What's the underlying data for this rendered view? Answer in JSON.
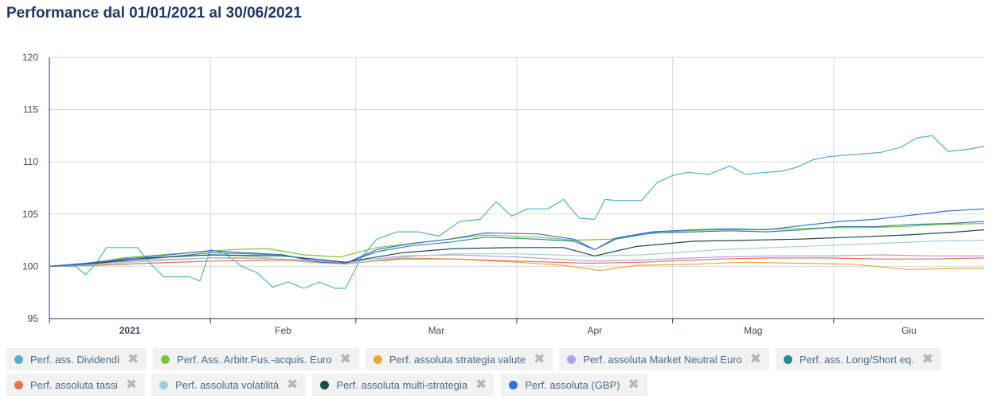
{
  "title": "Performance dal 01/01/2021 al 30/06/2021",
  "chart_data": {
    "type": "line",
    "ylim": [
      95,
      120
    ],
    "yticks": [
      95,
      100,
      105,
      110,
      115,
      120
    ],
    "xlim": [
      "2021-01-01",
      "2021-06-30"
    ],
    "xticks": [
      {
        "date": "2021-01-01",
        "label": "2021",
        "bold": true
      },
      {
        "date": "2021-02-01",
        "label": "Feb",
        "bold": false
      },
      {
        "date": "2021-03-01",
        "label": "Mar",
        "bold": false
      },
      {
        "date": "2021-04-01",
        "label": "Apr",
        "bold": false
      },
      {
        "date": "2021-05-01",
        "label": "Mag",
        "bold": false
      },
      {
        "date": "2021-06-01",
        "label": "Giu",
        "bold": false
      }
    ],
    "grid": true,
    "legend_position": "bottom",
    "series": [
      {
        "name": "Perf. ass. Dividendi",
        "color": "#4fb3c8",
        "points": [
          [
            "2021-01-01",
            100
          ],
          [
            "2021-01-06",
            100
          ],
          [
            "2021-01-08",
            99.2
          ],
          [
            "2021-01-10",
            100.3
          ],
          [
            "2021-01-12",
            101.8
          ],
          [
            "2021-01-18",
            101.8
          ],
          [
            "2021-01-20",
            100.5
          ],
          [
            "2021-01-23",
            99
          ],
          [
            "2021-01-28",
            99
          ],
          [
            "2021-01-30",
            98.6
          ],
          [
            "2021-02-01",
            101.6
          ],
          [
            "2021-02-04",
            101.2
          ],
          [
            "2021-02-07",
            100
          ],
          [
            "2021-02-10",
            99.4
          ],
          [
            "2021-02-13",
            98
          ],
          [
            "2021-02-16",
            98.5
          ],
          [
            "2021-02-19",
            97.9
          ],
          [
            "2021-02-22",
            98.5
          ],
          [
            "2021-02-25",
            97.9
          ],
          [
            "2021-02-27",
            97.9
          ],
          [
            "2021-03-02",
            100.8
          ],
          [
            "2021-03-05",
            102.6
          ],
          [
            "2021-03-09",
            103.3
          ],
          [
            "2021-03-13",
            103.3
          ],
          [
            "2021-03-17",
            102.9
          ],
          [
            "2021-03-21",
            104.3
          ],
          [
            "2021-03-25",
            104.5
          ],
          [
            "2021-03-28",
            106.2
          ],
          [
            "2021-03-31",
            104.8
          ],
          [
            "2021-04-03",
            105.5
          ],
          [
            "2021-04-07",
            105.5
          ],
          [
            "2021-04-10",
            106.4
          ],
          [
            "2021-04-13",
            104.6
          ],
          [
            "2021-04-16",
            104.5
          ],
          [
            "2021-04-18",
            106.4
          ],
          [
            "2021-04-20",
            106.3
          ],
          [
            "2021-04-25",
            106.3
          ],
          [
            "2021-04-28",
            108
          ],
          [
            "2021-05-01",
            108.7
          ],
          [
            "2021-05-04",
            109
          ],
          [
            "2021-05-08",
            108.8
          ],
          [
            "2021-05-12",
            109.6
          ],
          [
            "2021-05-15",
            108.8
          ],
          [
            "2021-05-19",
            109
          ],
          [
            "2021-05-22",
            109.1
          ],
          [
            "2021-05-25",
            109.5
          ],
          [
            "2021-05-28",
            110.2
          ],
          [
            "2021-05-31",
            110.5
          ],
          [
            "2021-06-05",
            110.7
          ],
          [
            "2021-06-10",
            110.9
          ],
          [
            "2021-06-14",
            111.4
          ],
          [
            "2021-06-17",
            112.3
          ],
          [
            "2021-06-20",
            112.5
          ],
          [
            "2021-06-23",
            111
          ],
          [
            "2021-06-27",
            111.2
          ],
          [
            "2021-06-30",
            111.5
          ]
        ]
      },
      {
        "name": "Perf. Ass. Arbitr.Fus.-acquis. Euro",
        "color": "#7bc63a",
        "points": [
          [
            "2021-01-01",
            100
          ],
          [
            "2021-01-08",
            100.2
          ],
          [
            "2021-01-15",
            100.8
          ],
          [
            "2021-01-25",
            101.2
          ],
          [
            "2021-02-05",
            101.6
          ],
          [
            "2021-02-12",
            101.7
          ],
          [
            "2021-02-19",
            101.1
          ],
          [
            "2021-02-26",
            100.9
          ],
          [
            "2021-03-05",
            101.8
          ],
          [
            "2021-03-12",
            102.2
          ],
          [
            "2021-03-19",
            102.6
          ],
          [
            "2021-03-26",
            103
          ],
          [
            "2021-04-05",
            102.8
          ],
          [
            "2021-04-12",
            102.5
          ],
          [
            "2021-04-19",
            102.6
          ],
          [
            "2021-04-26",
            103.1
          ],
          [
            "2021-05-03",
            103.4
          ],
          [
            "2021-05-10",
            103.5
          ],
          [
            "2021-05-17",
            103.5
          ],
          [
            "2021-05-24",
            103.6
          ],
          [
            "2021-05-31",
            103.7
          ],
          [
            "2021-06-07",
            103.7
          ],
          [
            "2021-06-14",
            103.8
          ],
          [
            "2021-06-21",
            104
          ],
          [
            "2021-06-30",
            104.1
          ]
        ]
      },
      {
        "name": "Perf. assoluta strategia valute",
        "color": "#e8a93a",
        "points": [
          [
            "2021-01-01",
            100
          ],
          [
            "2021-01-10",
            100.2
          ],
          [
            "2021-01-20",
            100.5
          ],
          [
            "2021-02-01",
            100.8
          ],
          [
            "2021-02-10",
            100.9
          ],
          [
            "2021-02-20",
            100.4
          ],
          [
            "2021-02-27",
            100.2
          ],
          [
            "2021-03-10",
            100.8
          ],
          [
            "2021-03-20",
            100.7
          ],
          [
            "2021-04-01",
            100.4
          ],
          [
            "2021-04-10",
            100.1
          ],
          [
            "2021-04-17",
            99.6
          ],
          [
            "2021-04-24",
            100.1
          ],
          [
            "2021-05-05",
            100.2
          ],
          [
            "2021-05-15",
            100.4
          ],
          [
            "2021-05-25",
            100.3
          ],
          [
            "2021-06-05",
            100.2
          ],
          [
            "2021-06-15",
            99.7
          ],
          [
            "2021-06-25",
            99.8
          ],
          [
            "2021-06-30",
            99.8
          ]
        ]
      },
      {
        "name": "Perf. assoluta Market Neutral Euro",
        "color": "#b39ef0",
        "points": [
          [
            "2021-01-01",
            100
          ],
          [
            "2021-01-10",
            100.3
          ],
          [
            "2021-01-20",
            100.6
          ],
          [
            "2021-02-01",
            100.8
          ],
          [
            "2021-02-15",
            100.7
          ],
          [
            "2021-02-27",
            100.4
          ],
          [
            "2021-03-10",
            101
          ],
          [
            "2021-03-20",
            101.1
          ],
          [
            "2021-04-01",
            100.9
          ],
          [
            "2021-04-15",
            100.5
          ],
          [
            "2021-04-25",
            100.6
          ],
          [
            "2021-05-10",
            100.9
          ],
          [
            "2021-05-20",
            101
          ],
          [
            "2021-05-31",
            101
          ],
          [
            "2021-06-10",
            101.1
          ],
          [
            "2021-06-20",
            101
          ],
          [
            "2021-06-30",
            101
          ]
        ]
      },
      {
        "name": "Perf. ass. Long/Short eq.",
        "color": "#2a8c96",
        "points": [
          [
            "2021-01-01",
            100
          ],
          [
            "2021-01-08",
            100.2
          ],
          [
            "2021-01-15",
            100.6
          ],
          [
            "2021-01-22",
            100.8
          ],
          [
            "2021-02-01",
            101.3
          ],
          [
            "2021-02-08",
            101.2
          ],
          [
            "2021-02-15",
            101.1
          ],
          [
            "2021-02-22",
            100.4
          ],
          [
            "2021-02-27",
            100.3
          ],
          [
            "2021-03-05",
            101.4
          ],
          [
            "2021-03-12",
            102
          ],
          [
            "2021-03-19",
            102.3
          ],
          [
            "2021-03-26",
            102.8
          ],
          [
            "2021-04-05",
            102.6
          ],
          [
            "2021-04-12",
            102.4
          ],
          [
            "2021-04-16",
            101.6
          ],
          [
            "2021-04-20",
            102.6
          ],
          [
            "2021-04-27",
            103.2
          ],
          [
            "2021-05-05",
            103.3
          ],
          [
            "2021-05-12",
            103.4
          ],
          [
            "2021-05-19",
            103.3
          ],
          [
            "2021-05-26",
            103.5
          ],
          [
            "2021-06-02",
            103.8
          ],
          [
            "2021-06-09",
            103.8
          ],
          [
            "2021-06-16",
            104
          ],
          [
            "2021-06-23",
            104.1
          ],
          [
            "2021-06-30",
            104.3
          ]
        ]
      },
      {
        "name": "Perf. assoluta tassi",
        "color": "#e8734a",
        "points": [
          [
            "2021-01-01",
            100
          ],
          [
            "2021-01-10",
            100.1
          ],
          [
            "2021-01-20",
            100.3
          ],
          [
            "2021-02-01",
            100.5
          ],
          [
            "2021-02-15",
            100.6
          ],
          [
            "2021-02-27",
            100.3
          ],
          [
            "2021-03-10",
            100.7
          ],
          [
            "2021-03-20",
            100.7
          ],
          [
            "2021-04-01",
            100.5
          ],
          [
            "2021-04-15",
            100.3
          ],
          [
            "2021-04-25",
            100.4
          ],
          [
            "2021-05-10",
            100.7
          ],
          [
            "2021-05-20",
            100.8
          ],
          [
            "2021-05-31",
            100.8
          ],
          [
            "2021-06-10",
            100.7
          ],
          [
            "2021-06-20",
            100.7
          ],
          [
            "2021-06-30",
            100.8
          ]
        ]
      },
      {
        "name": "Perf. assoluta volatilità",
        "color": "#9dd0dc",
        "points": [
          [
            "2021-01-01",
            100
          ],
          [
            "2021-01-10",
            100.2
          ],
          [
            "2021-01-20",
            100.5
          ],
          [
            "2021-02-01",
            100.8
          ],
          [
            "2021-02-15",
            100.7
          ],
          [
            "2021-02-27",
            100.2
          ],
          [
            "2021-03-10",
            100.9
          ],
          [
            "2021-03-20",
            101.2
          ],
          [
            "2021-04-01",
            101.2
          ],
          [
            "2021-04-15",
            101
          ],
          [
            "2021-04-25",
            101.1
          ],
          [
            "2021-05-10",
            101.6
          ],
          [
            "2021-05-20",
            101.8
          ],
          [
            "2021-05-31",
            102
          ],
          [
            "2021-06-10",
            102.2
          ],
          [
            "2021-06-20",
            102.4
          ],
          [
            "2021-06-30",
            102.5
          ]
        ]
      },
      {
        "name": "Perf. assoluta multi-strategia",
        "color": "#1e4a4a",
        "points": [
          [
            "2021-01-01",
            100
          ],
          [
            "2021-01-10",
            100.3
          ],
          [
            "2021-01-20",
            100.8
          ],
          [
            "2021-02-01",
            101.1
          ],
          [
            "2021-02-15",
            101
          ],
          [
            "2021-02-27",
            100.4
          ],
          [
            "2021-03-10",
            101.3
          ],
          [
            "2021-03-20",
            101.7
          ],
          [
            "2021-04-01",
            101.8
          ],
          [
            "2021-04-10",
            101.8
          ],
          [
            "2021-04-16",
            101
          ],
          [
            "2021-04-24",
            101.9
          ],
          [
            "2021-05-05",
            102.4
          ],
          [
            "2021-05-15",
            102.5
          ],
          [
            "2021-05-25",
            102.6
          ],
          [
            "2021-06-05",
            102.8
          ],
          [
            "2021-06-15",
            103
          ],
          [
            "2021-06-25",
            103.3
          ],
          [
            "2021-06-30",
            103.5
          ]
        ]
      },
      {
        "name": "Perf. assoluta (GBP)",
        "color": "#3a6fd8",
        "points": [
          [
            "2021-01-01",
            100
          ],
          [
            "2021-01-08",
            100.3
          ],
          [
            "2021-01-15",
            100.7
          ],
          [
            "2021-01-22",
            101
          ],
          [
            "2021-02-01",
            101.5
          ],
          [
            "2021-02-08",
            101.3
          ],
          [
            "2021-02-15",
            101.1
          ],
          [
            "2021-02-22",
            100.4
          ],
          [
            "2021-02-27",
            100.3
          ],
          [
            "2021-03-05",
            101.6
          ],
          [
            "2021-03-12",
            102.2
          ],
          [
            "2021-03-19",
            102.6
          ],
          [
            "2021-03-26",
            103.2
          ],
          [
            "2021-04-05",
            103.1
          ],
          [
            "2021-04-12",
            102.6
          ],
          [
            "2021-04-16",
            101.6
          ],
          [
            "2021-04-20",
            102.7
          ],
          [
            "2021-04-27",
            103.3
          ],
          [
            "2021-05-05",
            103.5
          ],
          [
            "2021-05-12",
            103.6
          ],
          [
            "2021-05-19",
            103.5
          ],
          [
            "2021-05-26",
            103.9
          ],
          [
            "2021-06-02",
            104.3
          ],
          [
            "2021-06-09",
            104.5
          ],
          [
            "2021-06-16",
            104.9
          ],
          [
            "2021-06-23",
            105.3
          ],
          [
            "2021-06-30",
            105.5
          ]
        ]
      }
    ]
  },
  "legend_rows": [
    [
      {
        "label": "Perf. ass. Dividendi",
        "color": "#4fb3c8"
      },
      {
        "label": "Perf. Ass. Arbitr.Fus.-acquis. Euro",
        "color": "#7bc63a"
      },
      {
        "label": "Perf. assoluta strategia valute",
        "color": "#e8a93a"
      },
      {
        "label": "Perf. assoluta Market Neutral Euro",
        "color": "#b39ef0"
      },
      {
        "label": "Perf. ass. Long/Short eq.",
        "color": "#2a8c96"
      }
    ],
    [
      {
        "label": "Perf. assoluta tassi",
        "color": "#e8734a"
      },
      {
        "label": "Perf. assoluta volatilità",
        "color": "#9dd0dc"
      },
      {
        "label": "Perf. assoluta multi-strategia",
        "color": "#1e4a4a"
      },
      {
        "label": "Perf. assoluta (GBP)",
        "color": "#3a6fd8"
      }
    ]
  ],
  "remove_glyph": "✖"
}
